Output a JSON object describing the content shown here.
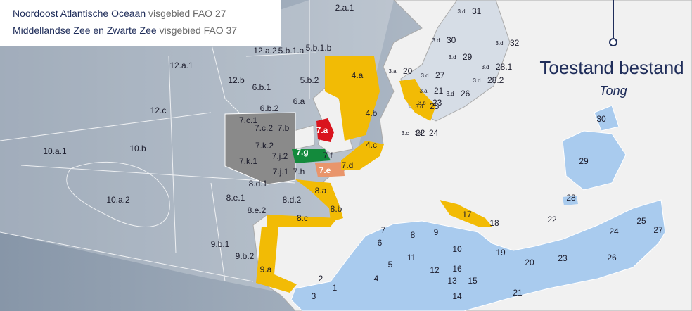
{
  "legend": [
    {
      "area": "Noordoost Atlantische Oceaan",
      "fao": "visgebied FAO 27"
    },
    {
      "area": "Middellandse Zee en Zwarte Zee",
      "fao": "visgebied FAO 37"
    }
  ],
  "title": "Toestand bestand",
  "subtitle": "Tong",
  "areas": [
    {
      "label": "2.a.1"
    },
    {
      "label": "12.a.2"
    },
    {
      "label": "5.b.1.a"
    },
    {
      "label": "5.b.1.b"
    },
    {
      "label": "12.a.1"
    },
    {
      "label": "12.b"
    },
    {
      "label": "6.b.1"
    },
    {
      "label": "5.b.2"
    },
    {
      "label": "6.a"
    },
    {
      "label": "6.b.2"
    },
    {
      "label": "12.c"
    },
    {
      "label": "7.c.1"
    },
    {
      "label": "7.c.2"
    },
    {
      "label": "7.b"
    },
    {
      "label": "7.a"
    },
    {
      "label": "7.k.2"
    },
    {
      "label": "7.g"
    },
    {
      "label": "7.f"
    },
    {
      "label": "7.j.2"
    },
    {
      "label": "7.k.1"
    },
    {
      "label": "7.j.1"
    },
    {
      "label": "7.h"
    },
    {
      "label": "7.e"
    },
    {
      "label": "7.d"
    },
    {
      "label": "10.a.1"
    },
    {
      "label": "10.b"
    },
    {
      "label": "8.d.1"
    },
    {
      "label": "8.a"
    },
    {
      "label": "8.e.1"
    },
    {
      "label": "8.d.2"
    },
    {
      "label": "8.b"
    },
    {
      "label": "10.a.2"
    },
    {
      "label": "8.e.2"
    },
    {
      "label": "8.c"
    },
    {
      "label": "9.b.1"
    },
    {
      "label": "9.b.2"
    },
    {
      "label": "9.a"
    },
    {
      "label": "4.a"
    },
    {
      "label": "4.b"
    },
    {
      "label": "4.c"
    }
  ],
  "baltic": [
    {
      "prefix": "3.a",
      "label": "20"
    },
    {
      "prefix": "3.a",
      "label": "21"
    },
    {
      "prefix": "3.b",
      "label": "23"
    },
    {
      "prefix": "3.c",
      "label": "22"
    },
    {
      "prefix": "3.d",
      "label": "24"
    },
    {
      "prefix": "3.d",
      "label": "25"
    },
    {
      "prefix": "3.d",
      "label": "26"
    },
    {
      "prefix": "3.d",
      "label": "27"
    },
    {
      "prefix": "3.d",
      "label": "28.2"
    },
    {
      "prefix": "3.d",
      "label": "28.1"
    },
    {
      "prefix": "3.d",
      "label": "29"
    },
    {
      "prefix": "3.d",
      "label": "30"
    },
    {
      "prefix": "3.d",
      "label": "31"
    },
    {
      "prefix": "3.d",
      "label": "32"
    }
  ],
  "mediterranean": [
    "1",
    "2",
    "3",
    "4",
    "5",
    "6",
    "7",
    "8",
    "9",
    "10",
    "11",
    "12",
    "13",
    "14",
    "15",
    "16",
    "17",
    "18",
    "19",
    "20",
    "21",
    "22",
    "23",
    "24",
    "25",
    "26",
    "27",
    "28",
    "29",
    "30"
  ]
}
